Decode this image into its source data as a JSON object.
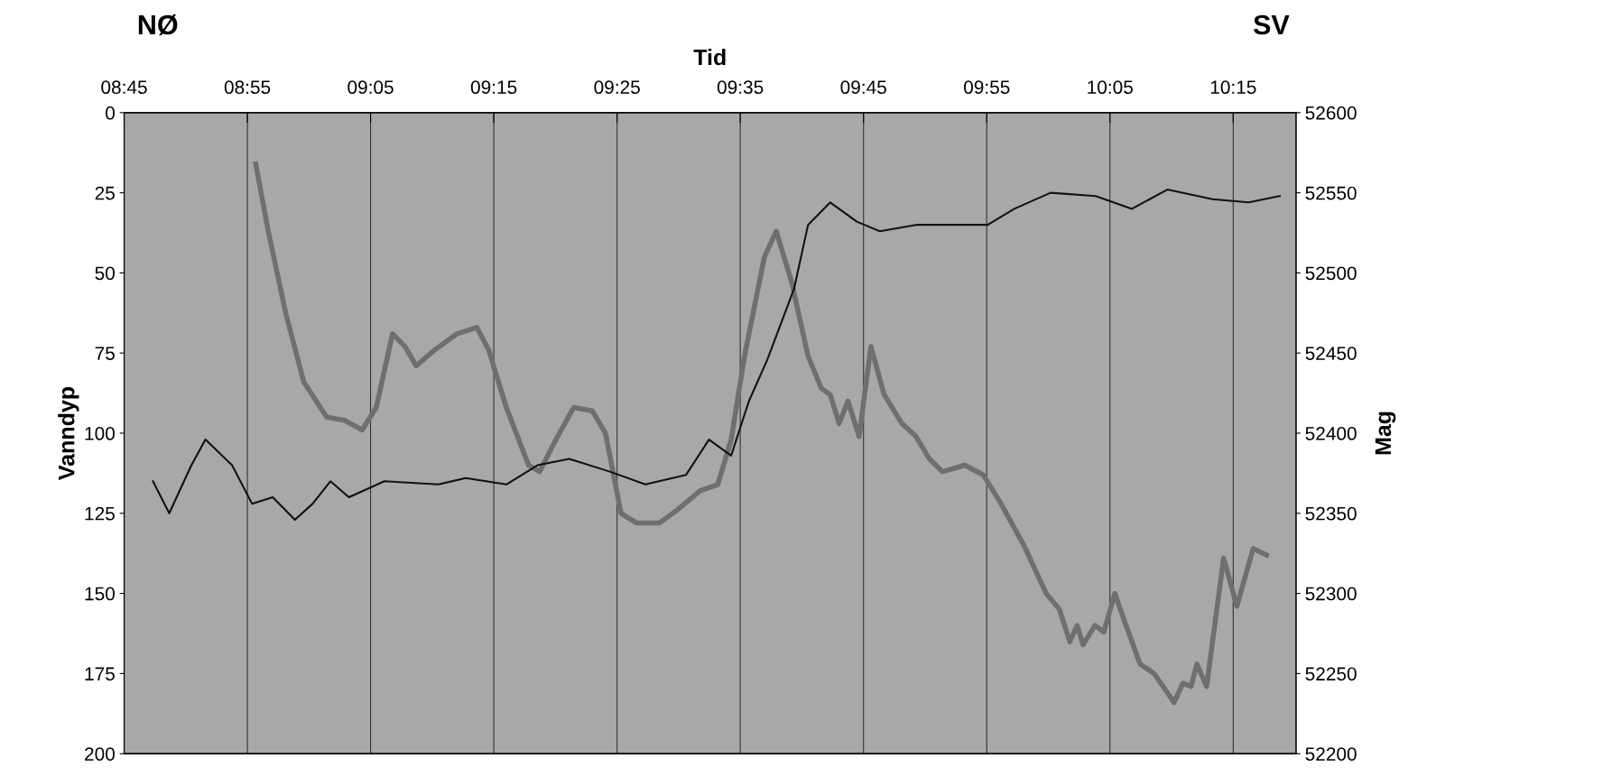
{
  "chart_data": {
    "type": "line",
    "xlabel": "Tid",
    "ylabel": "Vanndyp",
    "y2label": "Mag",
    "annotations": [
      "NØ",
      "SV"
    ],
    "xlim": [
      8.75,
      10.335
    ],
    "xticks": [
      {
        "value": 8.75,
        "label": "08:45"
      },
      {
        "value": 8.9167,
        "label": "08:55"
      },
      {
        "value": 9.0833,
        "label": "09:05"
      },
      {
        "value": 9.25,
        "label": "09:15"
      },
      {
        "value": 9.4167,
        "label": "09:25"
      },
      {
        "value": 9.5833,
        "label": "09:35"
      },
      {
        "value": 9.75,
        "label": "09:45"
      },
      {
        "value": 9.9167,
        "label": "09:55"
      },
      {
        "value": 10.0833,
        "label": "10:05"
      },
      {
        "value": 10.25,
        "label": "10:15"
      }
    ],
    "ylim": [
      200,
      0
    ],
    "yticks": [
      0,
      25,
      50,
      75,
      100,
      125,
      150,
      175,
      200
    ],
    "y2lim": [
      52200,
      52600
    ],
    "y2ticks": [
      52200,
      52250,
      52300,
      52350,
      52400,
      52450,
      52500,
      52550,
      52600
    ],
    "grid": "x",
    "legend": false,
    "line_style": "solid",
    "series": [
      {
        "color": "#6f6f6f",
        "x": [
          8.928,
          8.945,
          8.969,
          8.993,
          9.024,
          9.048,
          9.072,
          9.091,
          9.113,
          9.13,
          9.145,
          9.17,
          9.2,
          9.227,
          9.243,
          9.267,
          9.297,
          9.312,
          9.334,
          9.358,
          9.383,
          9.401,
          9.422,
          9.443,
          9.474,
          9.498,
          9.529,
          9.553,
          9.571,
          9.589,
          9.616,
          9.632,
          9.653,
          9.675,
          9.693,
          9.705,
          9.717,
          9.729,
          9.744,
          9.76,
          9.778,
          9.802,
          9.821,
          9.839,
          9.857,
          9.887,
          9.912,
          9.936,
          9.967,
          9.997,
          10.015,
          10.029,
          10.039,
          10.047,
          10.063,
          10.075,
          10.09,
          10.102,
          10.124,
          10.143,
          10.17,
          10.182,
          10.193,
          10.201,
          10.214,
          10.237,
          10.255,
          10.277,
          10.295
        ],
        "values": [
          16,
          37,
          63,
          84,
          95,
          96,
          99,
          92,
          69,
          73,
          79,
          74,
          69,
          67,
          74,
          92,
          110,
          112,
          102,
          92,
          93,
          100,
          125,
          128,
          128,
          124,
          118,
          116,
          102,
          76,
          45,
          37,
          53,
          76,
          86,
          88,
          97,
          90,
          101,
          73,
          88,
          97,
          101,
          108,
          112,
          110,
          113,
          122,
          135,
          150,
          155,
          165,
          160,
          166,
          160,
          162,
          150,
          158,
          172,
          175,
          184,
          178,
          179,
          172,
          179,
          139,
          154,
          136,
          138
        ]
      },
      {
        "color": "#111111",
        "axis": "y2",
        "x": [
          8.789,
          8.811,
          8.841,
          8.86,
          8.896,
          8.923,
          8.951,
          8.981,
          9.005,
          9.029,
          9.054,
          9.102,
          9.175,
          9.212,
          9.267,
          9.309,
          9.352,
          9.407,
          9.455,
          9.51,
          9.541,
          9.571,
          9.595,
          9.62,
          9.656,
          9.675,
          9.705,
          9.741,
          9.772,
          9.821,
          9.881,
          9.918,
          9.954,
          10.003,
          10.064,
          10.113,
          10.161,
          10.222,
          10.271,
          10.313
        ],
        "values": [
          52370,
          52350,
          52380,
          52396,
          52380,
          52356,
          52360,
          52346,
          52356,
          52370,
          52360,
          52370,
          52368,
          52372,
          52368,
          52380,
          52384,
          52376,
          52368,
          52374,
          52396,
          52386,
          52420,
          52446,
          52490,
          52530,
          52544,
          52532,
          52526,
          52530,
          52530,
          52530,
          52540,
          52550,
          52548,
          52540,
          52552,
          52546,
          52544,
          52548
        ]
      }
    ]
  }
}
